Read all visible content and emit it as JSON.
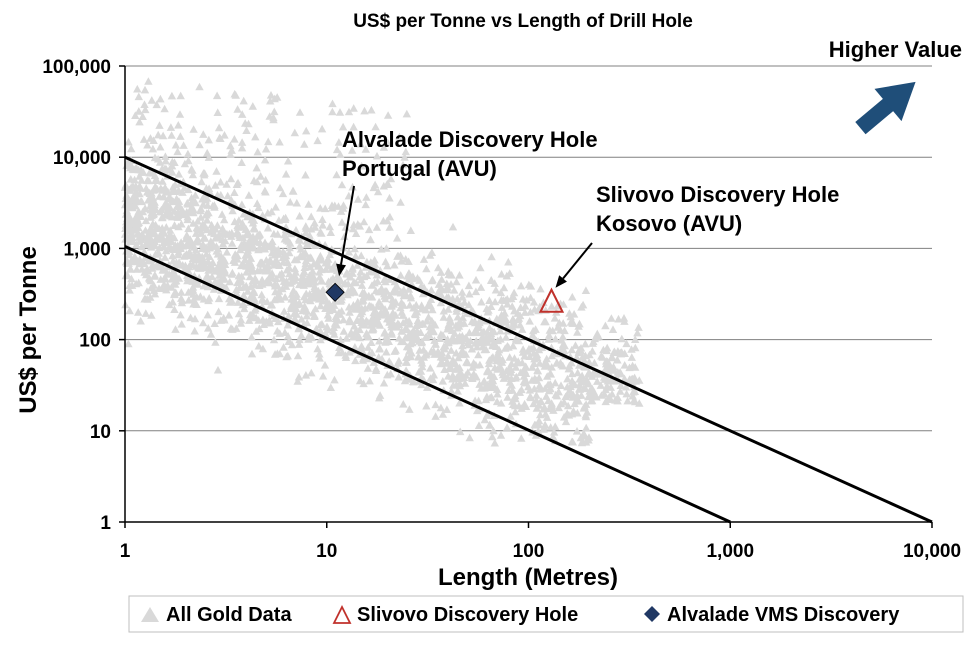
{
  "chart_data": {
    "type": "scatter",
    "title": "US$ per Tonne vs Length of Drill Hole",
    "xlabel": "Length (Metres)",
    "ylabel": "US$ per Tonne",
    "x_scale": "log",
    "y_scale": "log",
    "xlim": [
      1,
      10000
    ],
    "ylim": [
      1,
      100000
    ],
    "x_tick_labels": [
      "1",
      "10",
      "100",
      "1,000",
      "10,000"
    ],
    "y_tick_labels": [
      "1",
      "10",
      "100",
      "1,000",
      "10,000",
      "100,000"
    ],
    "x_ticks": [
      1,
      10,
      100,
      1000,
      10000
    ],
    "y_ticks": [
      1,
      10,
      100,
      1000,
      10000,
      100000
    ],
    "grid": "horizontal",
    "legend_position": "bottom",
    "series": [
      {
        "name": "All Gold Data",
        "marker": "triangle",
        "color": "#d9d9d9",
        "approx_extent": {
          "x_range": [
            1,
            450
          ],
          "y_range": [
            7,
            80000
          ],
          "trend": "band along y ≈ 1000/x to 10000/x, dense near x 2–300, y 30–3000"
        }
      },
      {
        "name": "Slivovo Discovery Hole",
        "marker": "open-triangle",
        "color": "#c0312b",
        "points": [
          {
            "x": 130,
            "y": 260
          }
        ]
      },
      {
        "name": "Alvalade VMS Discovery",
        "marker": "diamond",
        "color": "#203864",
        "points": [
          {
            "x": 11,
            "y": 330
          }
        ]
      }
    ],
    "reference_lines": [
      {
        "from": {
          "x": 1,
          "y": 10000
        },
        "to": {
          "x": 10000,
          "y": 1
        }
      },
      {
        "from": {
          "x": 1,
          "y": 1050
        },
        "to": {
          "x": 1000,
          "y": 1
        }
      }
    ],
    "annotations": [
      {
        "lines": [
          "Alvalade Discovery Hole",
          "Portugal (AVU)"
        ],
        "points_to": {
          "x": 11,
          "y": 330
        }
      },
      {
        "lines": [
          "Slivovo Discovery Hole",
          "Kosovo (AVU)"
        ],
        "points_to": {
          "x": 130,
          "y": 260
        }
      },
      {
        "lines": [
          "Higher Value"
        ],
        "arrow_color": "#1f4e79"
      }
    ]
  }
}
